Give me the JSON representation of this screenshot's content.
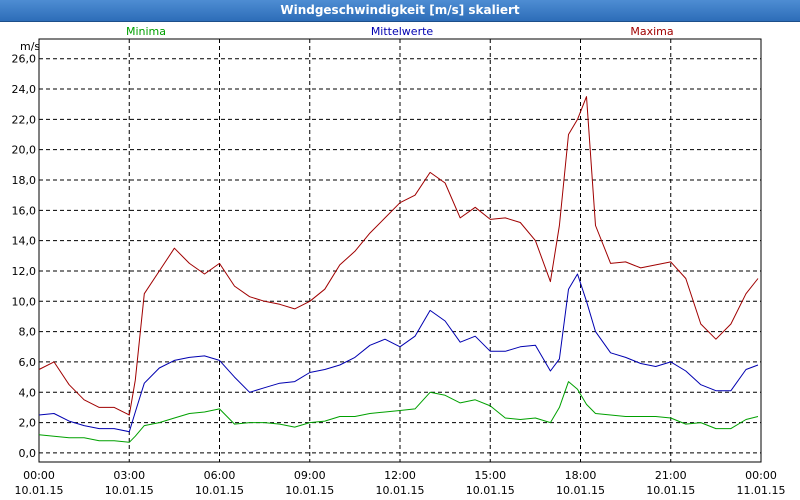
{
  "window": {
    "title": "Windgeschwindigkeit [m/s] skaliert"
  },
  "chart_data": {
    "type": "line",
    "title": "Windgeschwindigkeit [m/s] skaliert",
    "ylabel": "m/s",
    "xlabel": "",
    "ylim": [
      -0.6,
      27.3
    ],
    "xlim": [
      0,
      24
    ],
    "grid": true,
    "yticks": [
      0,
      2,
      4,
      6,
      8,
      10,
      12,
      14,
      16,
      18,
      20,
      22,
      24,
      26
    ],
    "ytick_labels": [
      "0,0",
      "2,0",
      "4,0",
      "6,0",
      "8,0",
      "10,0",
      "12,0",
      "14,0",
      "16,0",
      "18,0",
      "20,0",
      "22,0",
      "24,0",
      "26,0"
    ],
    "xticks": [
      {
        "x": 0,
        "time": "00:00",
        "date": "10.01.15"
      },
      {
        "x": 3,
        "time": "03:00",
        "date": "10.01.15"
      },
      {
        "x": 6,
        "time": "06:00",
        "date": "10.01.15"
      },
      {
        "x": 9,
        "time": "09:00",
        "date": "10.01.15"
      },
      {
        "x": 12,
        "time": "12:00",
        "date": "10.01.15"
      },
      {
        "x": 15,
        "time": "15:00",
        "date": "10.01.15"
      },
      {
        "x": 18,
        "time": "18:00",
        "date": "10.01.15"
      },
      {
        "x": 21,
        "time": "21:00",
        "date": "10.01.15"
      },
      {
        "x": 24,
        "time": "00:00",
        "date": "11.01.15"
      }
    ],
    "x": [
      0,
      0.5,
      1,
      1.5,
      2,
      2.5,
      3,
      3.2,
      3.5,
      4,
      4.5,
      5,
      5.5,
      6,
      6.5,
      7,
      7.5,
      8,
      8.5,
      9,
      9.5,
      10,
      10.5,
      11,
      11.5,
      12,
      12.5,
      13,
      13.5,
      14,
      14.5,
      15,
      15.5,
      16,
      16.5,
      17,
      17.3,
      17.6,
      17.9,
      18.2,
      18.5,
      19,
      19.5,
      20,
      20.5,
      21,
      21.5,
      22,
      22.5,
      23,
      23.5,
      23.9
    ],
    "series": [
      {
        "name": "Minima",
        "color": "#00a000",
        "values": [
          1.2,
          1.1,
          1.0,
          1.0,
          0.8,
          0.8,
          0.7,
          1.1,
          1.8,
          2.0,
          2.3,
          2.6,
          2.7,
          2.9,
          1.9,
          2.0,
          2.0,
          1.9,
          1.7,
          2.0,
          2.1,
          2.4,
          2.4,
          2.6,
          2.7,
          2.8,
          2.9,
          4.0,
          3.8,
          3.3,
          3.5,
          3.1,
          2.3,
          2.2,
          2.3,
          2.0,
          3.0,
          4.7,
          4.2,
          3.2,
          2.6,
          2.5,
          2.4,
          2.4,
          2.4,
          2.3,
          1.9,
          2.0,
          1.6,
          1.6,
          2.2,
          2.4
        ]
      },
      {
        "name": "Mittelwerte",
        "color": "#0000b0",
        "values": [
          2.5,
          2.6,
          2.1,
          1.8,
          1.6,
          1.6,
          1.4,
          2.7,
          4.6,
          5.6,
          6.1,
          6.3,
          6.4,
          6.1,
          5.0,
          4.0,
          4.3,
          4.6,
          4.7,
          5.3,
          5.5,
          5.8,
          6.3,
          7.1,
          7.5,
          7.0,
          7.7,
          9.4,
          8.7,
          7.3,
          7.7,
          6.7,
          6.7,
          7.0,
          7.1,
          5.4,
          6.2,
          10.8,
          11.8,
          10.0,
          8.0,
          6.6,
          6.3,
          5.9,
          5.7,
          6.0,
          5.4,
          4.5,
          4.1,
          4.1,
          5.5,
          5.8
        ]
      },
      {
        "name": "Maxima",
        "color": "#a00000",
        "values": [
          5.5,
          6.0,
          4.5,
          3.5,
          3.0,
          3.0,
          2.5,
          4.8,
          10.5,
          12.0,
          13.5,
          12.5,
          11.8,
          12.5,
          11.0,
          10.3,
          10.0,
          9.8,
          9.5,
          10.0,
          10.8,
          12.4,
          13.3,
          14.5,
          15.5,
          16.5,
          17.0,
          18.5,
          17.8,
          15.5,
          16.2,
          15.4,
          15.5,
          15.2,
          14.0,
          11.3,
          15.0,
          21.0,
          22.0,
          23.5,
          15.0,
          12.5,
          12.6,
          12.2,
          12.4,
          12.6,
          11.5,
          8.5,
          7.5,
          8.5,
          10.5,
          11.5
        ]
      }
    ]
  }
}
